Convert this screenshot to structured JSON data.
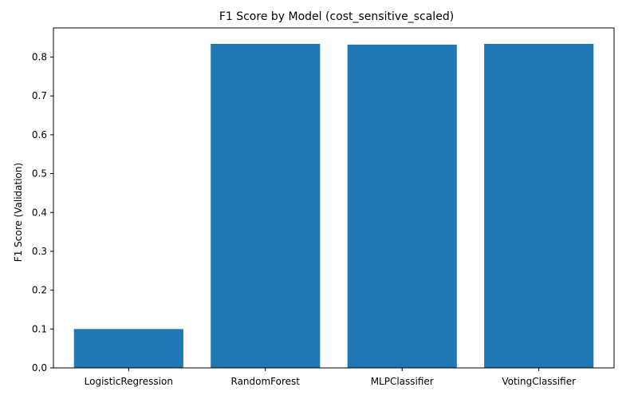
{
  "chart_data": {
    "type": "bar",
    "title": "F1 Score by Model (cost_sensitive_scaled)",
    "xlabel": "",
    "ylabel": "F1 Score (Validation)",
    "categories": [
      "LogisticRegression",
      "RandomForest",
      "MLPClassifier",
      "VotingClassifier"
    ],
    "values": [
      0.1,
      0.834,
      0.832,
      0.834
    ],
    "ylim": [
      0,
      0.875
    ],
    "yticks": [
      "0.0",
      "0.1",
      "0.2",
      "0.3",
      "0.4",
      "0.5",
      "0.6",
      "0.7",
      "0.8"
    ],
    "bar_color": "#1f77b4",
    "grid": false,
    "legend": false
  }
}
